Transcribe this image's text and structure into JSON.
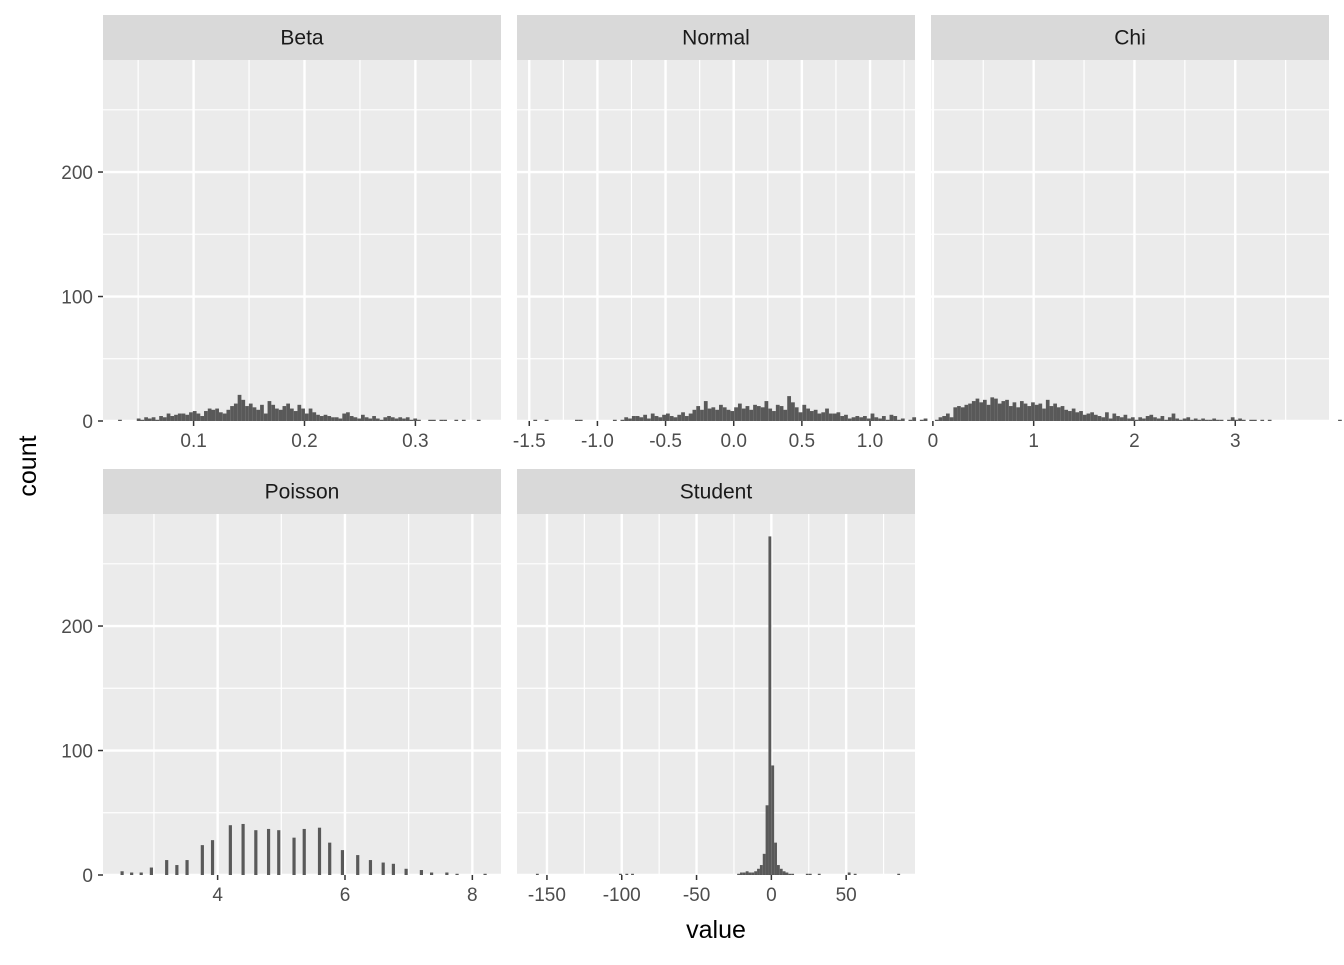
{
  "chart_data": {
    "type": "histogram",
    "xlabel": "value",
    "ylabel": "count",
    "y_ticks": [
      0,
      100,
      200
    ],
    "ylim": [
      0,
      290
    ],
    "colors": {
      "bar": "#595959",
      "panel": "#ebebeb",
      "strip": "#d9d9d9",
      "grid": "#ffffff"
    },
    "panels": [
      {
        "name": "Beta",
        "xlim": [
          0.0183,
          0.3772
        ],
        "x_ticks": [
          0.1,
          0.2,
          0.3
        ],
        "x_tick_labels": [
          "0.1",
          "0.2",
          "0.3"
        ],
        "bin_width": 0.00337,
        "bin_start": 0.0319,
        "counts": [
          1,
          0,
          0,
          0,
          0,
          2,
          1,
          3,
          2,
          3,
          1,
          4,
          3,
          6,
          4,
          5,
          6,
          6,
          5,
          7,
          8,
          6,
          4,
          8,
          10,
          9,
          10,
          7,
          6,
          9,
          12,
          14,
          21,
          17,
          12,
          14,
          11,
          9,
          13,
          6,
          16,
          13,
          10,
          9,
          12,
          14,
          10,
          8,
          13,
          10,
          6,
          10,
          7,
          5,
          4,
          5,
          4,
          3,
          3,
          2,
          6,
          7,
          4,
          3,
          2,
          5,
          3,
          2,
          4,
          2,
          1,
          3,
          4,
          3,
          2,
          3,
          2,
          3,
          1,
          2,
          1,
          0,
          0,
          1,
          1,
          0,
          1,
          1,
          0,
          0,
          1,
          0,
          1,
          0,
          0,
          0,
          1
        ]
      },
      {
        "name": "Normal",
        "xlim": [
          -1.59,
          1.33
        ],
        "x_ticks": [
          -1.5,
          -1.0,
          -0.5,
          0.0,
          0.5,
          1.0
        ],
        "x_tick_labels": [
          "-1.5",
          "-1.0",
          "-0.5",
          "0.0",
          "0.5",
          "1.0"
        ],
        "bin_width": 0.0278,
        "bin_start": -1.47,
        "counts": [
          1,
          0,
          0,
          1,
          0,
          0,
          0,
          0,
          0,
          0,
          0,
          1,
          1,
          0,
          0,
          0,
          0,
          0,
          0,
          0,
          0,
          1,
          0,
          1,
          3,
          2,
          4,
          4,
          3,
          5,
          2,
          6,
          4,
          3,
          5,
          6,
          4,
          3,
          5,
          7,
          4,
          6,
          9,
          12,
          9,
          16,
          10,
          11,
          9,
          13,
          11,
          9,
          8,
          11,
          14,
          10,
          12,
          9,
          13,
          12,
          11,
          16,
          10,
          8,
          13,
          12,
          9,
          20,
          15,
          11,
          7,
          13,
          10,
          8,
          9,
          6,
          7,
          10,
          6,
          6,
          7,
          4,
          5,
          2,
          3,
          4,
          3,
          4,
          2,
          6,
          3,
          2,
          4,
          1,
          5,
          4,
          1,
          2,
          0,
          1,
          3,
          0,
          1,
          2,
          0,
          1,
          0,
          0,
          0,
          1
        ]
      },
      {
        "name": "Chi",
        "xlim": [
          -0.0187,
          3.93
        ],
        "x_ticks": [
          0,
          1,
          2,
          3
        ],
        "x_tick_labels": [
          "0",
          "1",
          "2",
          "3"
        ],
        "bin_width": 0.0367,
        "bin_start": 0.02,
        "counts": [
          1,
          3,
          4,
          6,
          3,
          11,
          12,
          11,
          13,
          14,
          16,
          18,
          15,
          17,
          13,
          19,
          18,
          14,
          16,
          17,
          12,
          15,
          11,
          16,
          14,
          12,
          15,
          13,
          14,
          10,
          17,
          12,
          14,
          11,
          12,
          9,
          8,
          10,
          7,
          8,
          5,
          6,
          7,
          5,
          4,
          3,
          7,
          2,
          6,
          4,
          3,
          5,
          2,
          3,
          1,
          3,
          2,
          4,
          5,
          3,
          2,
          4,
          1,
          3,
          6,
          2,
          1,
          2,
          3,
          1,
          2,
          1,
          2,
          1,
          1,
          2,
          1,
          1,
          0,
          1,
          3,
          1,
          2,
          1,
          0,
          1,
          1,
          0,
          1,
          0,
          1,
          0,
          0,
          0,
          0,
          0,
          0,
          0,
          0,
          0,
          0,
          0,
          0,
          0,
          0,
          0,
          0,
          0,
          0,
          1,
          0,
          1
        ]
      },
      {
        "name": "Poisson",
        "xlim": [
          2.2,
          8.45
        ],
        "x_ticks": [
          4,
          6,
          8
        ],
        "x_tick_labels": [
          "4",
          "6",
          "8"
        ],
        "bin_width": 0.05,
        "bars": [
          [
            2.5,
            3
          ],
          [
            2.65,
            2
          ],
          [
            2.8,
            2
          ],
          [
            2.96,
            6
          ],
          [
            3.2,
            12
          ],
          [
            3.36,
            8
          ],
          [
            3.52,
            12
          ],
          [
            3.76,
            24
          ],
          [
            3.92,
            28
          ],
          [
            4.2,
            40
          ],
          [
            4.4,
            41
          ],
          [
            4.6,
            36
          ],
          [
            4.8,
            37
          ],
          [
            4.96,
            36
          ],
          [
            5.2,
            30
          ],
          [
            5.36,
            37
          ],
          [
            5.6,
            38
          ],
          [
            5.76,
            26
          ],
          [
            5.96,
            20
          ],
          [
            6.2,
            16
          ],
          [
            6.4,
            12
          ],
          [
            6.6,
            10
          ],
          [
            6.76,
            9
          ],
          [
            6.96,
            5
          ],
          [
            7.2,
            4
          ],
          [
            7.36,
            2
          ],
          [
            7.6,
            2
          ],
          [
            7.76,
            1
          ],
          [
            8.2,
            1
          ]
        ]
      },
      {
        "name": "Student",
        "xlim": [
          -170,
          96
        ],
        "x_ticks": [
          -150,
          -100,
          -50,
          0,
          50
        ],
        "x_tick_labels": [
          "-150",
          "-100",
          "-50",
          "0",
          "50"
        ],
        "bin_width": 1.9,
        "bars": [
          [
            -156.4,
            1
          ],
          [
            -100.9,
            1
          ],
          [
            -96.6,
            1
          ],
          [
            -92.8,
            1
          ],
          [
            -21.9,
            1
          ],
          [
            -20,
            2
          ],
          [
            -18.1,
            2
          ],
          [
            -16.2,
            3
          ],
          [
            -14.3,
            2
          ],
          [
            -12.4,
            2
          ],
          [
            -10.5,
            3
          ],
          [
            -8.6,
            5
          ],
          [
            -6.7,
            8
          ],
          [
            -4.8,
            17
          ],
          [
            -2.9,
            56
          ],
          [
            -1,
            272
          ],
          [
            0.9,
            88
          ],
          [
            2.8,
            26
          ],
          [
            4.7,
            8
          ],
          [
            6.6,
            5
          ],
          [
            8.5,
            3
          ],
          [
            10.4,
            2
          ],
          [
            12.3,
            1
          ],
          [
            14.2,
            1
          ],
          [
            24,
            1
          ],
          [
            26,
            1
          ],
          [
            32,
            1
          ],
          [
            52,
            2
          ],
          [
            56,
            1
          ],
          [
            85.1,
            1
          ]
        ]
      }
    ]
  }
}
